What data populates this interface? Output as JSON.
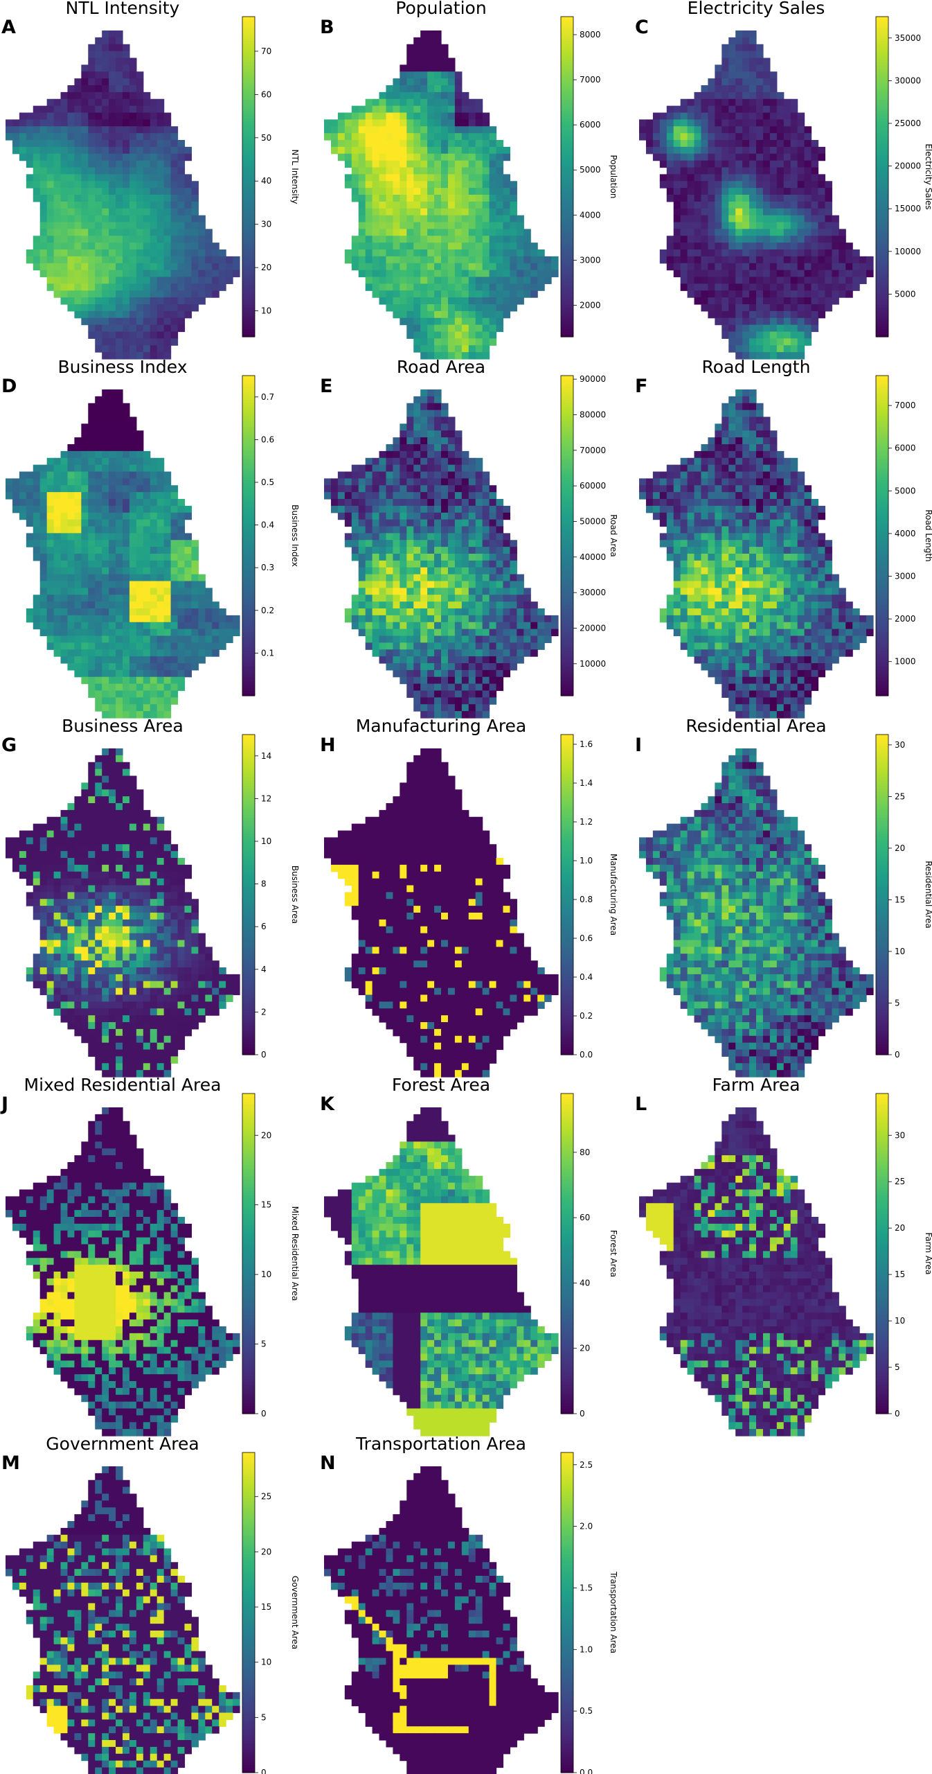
{
  "colormap": {
    "name": "viridis",
    "stops": [
      "#440154",
      "#482878",
      "#3e4989",
      "#31688e",
      "#26828e",
      "#1f9e89",
      "#35b779",
      "#6ece58",
      "#b5de2b",
      "#fde725"
    ]
  },
  "chart_data": [
    {
      "letter": "A",
      "title": "NTL Intensity",
      "type": "heatmap",
      "colorbar_label": "NTL Intensity",
      "ticks": [
        "10",
        "20",
        "30",
        "40",
        "50",
        "60",
        "70"
      ],
      "tick_values": [
        10,
        20,
        30,
        40,
        50,
        60,
        70
      ],
      "vmin": 4,
      "vmax": 78,
      "pattern": "ntl"
    },
    {
      "letter": "B",
      "title": "Population",
      "type": "heatmap",
      "colorbar_label": "Population",
      "ticks": [
        "2000",
        "3000",
        "4000",
        "5000",
        "6000",
        "7000",
        "8000"
      ],
      "tick_values": [
        2000,
        3000,
        4000,
        5000,
        6000,
        7000,
        8000
      ],
      "vmin": 1300,
      "vmax": 8400,
      "pattern": "population"
    },
    {
      "letter": "C",
      "title": "Electricity Sales",
      "type": "heatmap",
      "colorbar_label": "Electricity Sales",
      "ticks": [
        "5000",
        "10000",
        "15000",
        "20000",
        "25000",
        "30000",
        "35000"
      ],
      "tick_values": [
        5000,
        10000,
        15000,
        20000,
        25000,
        30000,
        35000
      ],
      "vmin": 0,
      "vmax": 37500,
      "pattern": "electricity"
    },
    {
      "letter": "D",
      "title": "Business Index",
      "type": "heatmap",
      "colorbar_label": "Business Index",
      "ticks": [
        "0.1",
        "0.2",
        "0.3",
        "0.4",
        "0.5",
        "0.6",
        "0.7"
      ],
      "tick_values": [
        0.1,
        0.2,
        0.3,
        0.4,
        0.5,
        0.6,
        0.7
      ],
      "vmin": 0,
      "vmax": 0.75,
      "pattern": "business_index"
    },
    {
      "letter": "E",
      "title": "Road Area",
      "type": "heatmap",
      "colorbar_label": "Road Area",
      "ticks": [
        "10000",
        "20000",
        "30000",
        "40000",
        "50000",
        "60000",
        "70000",
        "80000",
        "90000"
      ],
      "tick_values": [
        10000,
        20000,
        30000,
        40000,
        50000,
        60000,
        70000,
        80000,
        90000
      ],
      "vmin": 1000,
      "vmax": 91000,
      "pattern": "road"
    },
    {
      "letter": "F",
      "title": "Road Length",
      "type": "heatmap",
      "colorbar_label": "Road Length",
      "ticks": [
        "1000",
        "2000",
        "3000",
        "4000",
        "5000",
        "6000",
        "7000"
      ],
      "tick_values": [
        1000,
        2000,
        3000,
        4000,
        5000,
        6000,
        7000
      ],
      "vmin": 200,
      "vmax": 7700,
      "pattern": "road"
    },
    {
      "letter": "G",
      "title": "Business Area",
      "type": "heatmap",
      "colorbar_label": "Business Area",
      "ticks": [
        "0",
        "2",
        "4",
        "6",
        "8",
        "10",
        "12",
        "14"
      ],
      "tick_values": [
        0,
        2,
        4,
        6,
        8,
        10,
        12,
        14
      ],
      "vmin": 0,
      "vmax": 15,
      "pattern": "business_area"
    },
    {
      "letter": "H",
      "title": "Manufacturing Area",
      "type": "heatmap",
      "colorbar_label": "Manufacturing Area",
      "ticks": [
        "0.0",
        "0.2",
        "0.4",
        "0.6",
        "0.8",
        "1.0",
        "1.2",
        "1.4",
        "1.6"
      ],
      "tick_values": [
        0,
        0.2,
        0.4,
        0.6,
        0.8,
        1.0,
        1.2,
        1.4,
        1.6
      ],
      "vmin": 0,
      "vmax": 1.65,
      "pattern": "manufacturing"
    },
    {
      "letter": "I",
      "title": "Residential Area",
      "type": "heatmap",
      "colorbar_label": "Residential Area",
      "ticks": [
        "0",
        "5",
        "10",
        "15",
        "20",
        "25",
        "30"
      ],
      "tick_values": [
        0,
        5,
        10,
        15,
        20,
        25,
        30
      ],
      "vmin": 0,
      "vmax": 31,
      "pattern": "residential"
    },
    {
      "letter": "J",
      "title": "Mixed Residential Area",
      "type": "heatmap",
      "colorbar_label": "Mixed Residential Area",
      "ticks": [
        "0",
        "5",
        "10",
        "15",
        "20"
      ],
      "tick_values": [
        0,
        5,
        10,
        15,
        20
      ],
      "vmin": 0,
      "vmax": 23,
      "pattern": "mixed"
    },
    {
      "letter": "K",
      "title": "Forest Area",
      "type": "heatmap",
      "colorbar_label": "Forest Area",
      "ticks": [
        "0",
        "20",
        "40",
        "60",
        "80"
      ],
      "tick_values": [
        0,
        20,
        40,
        60,
        80
      ],
      "vmin": 0,
      "vmax": 98,
      "pattern": "forest"
    },
    {
      "letter": "L",
      "title": "Farm Area",
      "type": "heatmap",
      "colorbar_label": "Farm Area",
      "ticks": [
        "0",
        "5",
        "10",
        "15",
        "20",
        "25",
        "30"
      ],
      "tick_values": [
        0,
        5,
        10,
        15,
        20,
        25,
        30
      ],
      "vmin": 0,
      "vmax": 34.5,
      "pattern": "farm"
    },
    {
      "letter": "M",
      "title": "Government Area",
      "type": "heatmap",
      "colorbar_label": "Government Area",
      "ticks": [
        "0",
        "5",
        "10",
        "15",
        "20",
        "25"
      ],
      "tick_values": [
        0,
        5,
        10,
        15,
        20,
        25
      ],
      "vmin": 0,
      "vmax": 29,
      "pattern": "government"
    },
    {
      "letter": "N",
      "title": "Transportation Area",
      "type": "heatmap",
      "colorbar_label": "Transportation Area",
      "ticks": [
        "0.0",
        "0.5",
        "1.0",
        "1.5",
        "2.0",
        "2.5"
      ],
      "tick_values": [
        0,
        0.5,
        1.0,
        1.5,
        2.0,
        2.5
      ],
      "vmin": 0,
      "vmax": 2.6,
      "pattern": "transport"
    }
  ]
}
